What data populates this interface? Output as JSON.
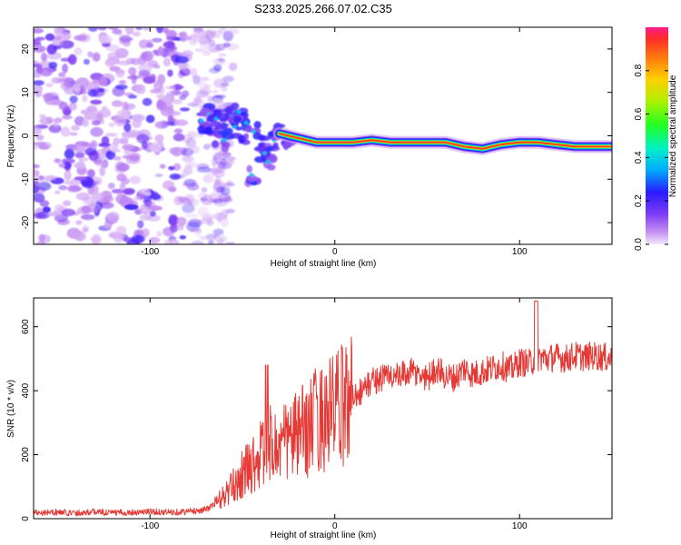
{
  "title": "S233.2025.266.07.02.C35",
  "chart_data": [
    {
      "type": "heatmap",
      "xlabel": "Height of straight line (km)",
      "ylabel": "Frequency (Hz)",
      "xlim": [
        -163,
        150
      ],
      "ylim": [
        -25,
        25
      ],
      "xticks": [
        -100,
        0,
        100
      ],
      "yticks": [
        -20,
        -10,
        0,
        10,
        20
      ],
      "colorbar": {
        "label": "Normalized spectral amplitude",
        "range": [
          0,
          1
        ],
        "ticks": [
          0.0,
          0.2,
          0.4,
          0.6,
          0.8
        ]
      },
      "ridge": {
        "x": [
          -30,
          -20,
          -10,
          0,
          10,
          20,
          30,
          40,
          50,
          60,
          70,
          80,
          90,
          100,
          110,
          120,
          130,
          140,
          150
        ],
        "freq": [
          0.5,
          -0.5,
          -1.5,
          -1.5,
          -1.5,
          -1.0,
          -1.5,
          -1.5,
          -1.5,
          -1.5,
          -2.5,
          -3.0,
          -2.0,
          -1.5,
          -1.5,
          -2.0,
          -2.5,
          -2.5,
          -2.5
        ]
      },
      "noise_region_x": [
        -163,
        -65
      ]
    },
    {
      "type": "line",
      "xlabel": "Height of straight line (km)",
      "ylabel": "SNR (10 * v/v)",
      "xlim": [
        -163,
        150
      ],
      "ylim": [
        0,
        690
      ],
      "xticks": [
        -100,
        0,
        100
      ],
      "yticks": [
        0,
        200,
        400,
        600
      ],
      "color": "#e53935",
      "series": [
        {
          "name": "SNR",
          "x": [
            -163,
            -150,
            -140,
            -130,
            -120,
            -110,
            -100,
            -90,
            -80,
            -70,
            -65,
            -60,
            -55,
            -50,
            -45,
            -40,
            -35,
            -30,
            -25,
            -20,
            -15,
            -10,
            -5,
            0,
            5,
            10,
            15,
            20,
            25,
            30,
            35,
            40,
            45,
            50,
            55,
            60,
            65,
            70,
            75,
            80,
            85,
            90,
            95,
            100,
            105,
            110,
            115,
            120,
            125,
            130,
            135,
            140,
            145,
            150
          ],
          "values": [
            20,
            20,
            18,
            22,
            18,
            20,
            22,
            20,
            22,
            28,
            45,
            70,
            100,
            140,
            170,
            200,
            230,
            220,
            250,
            260,
            280,
            310,
            320,
            340,
            355,
            390,
            400,
            430,
            440,
            450,
            440,
            460,
            450,
            440,
            470,
            445,
            440,
            470,
            450,
            460,
            470,
            480,
            465,
            490,
            485,
            505,
            500,
            505,
            500,
            510,
            505,
            510,
            505,
            500
          ]
        }
      ]
    }
  ],
  "colors": {
    "line": "#e53935",
    "background": "#ffffff",
    "axis": "#000000"
  }
}
